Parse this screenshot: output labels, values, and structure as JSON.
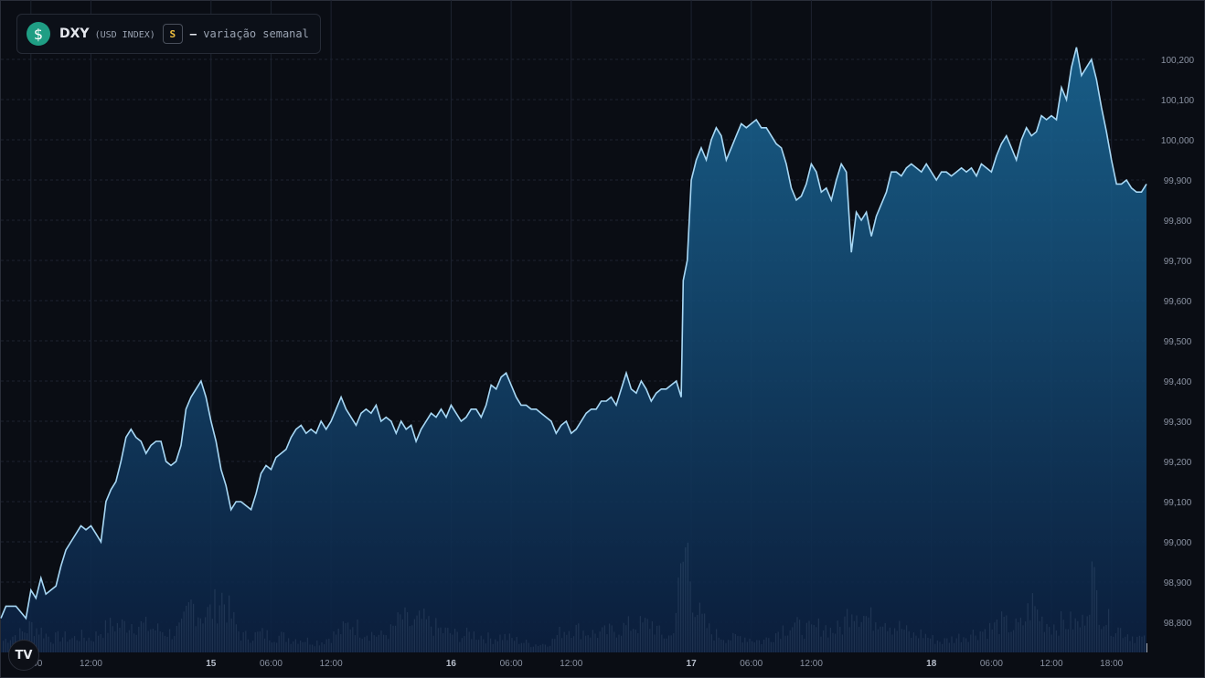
{
  "legend": {
    "icon": "dollar-coin-icon",
    "icon_glyph": "$",
    "symbol": "DXY",
    "symbol_sub": "(USD INDEX)",
    "badge": "S",
    "dash": "–",
    "description": "variação semanal"
  },
  "watermark": {
    "icon": "tradingview-logo-icon",
    "text": "TV"
  },
  "colors": {
    "background": "#0a0d14",
    "line": "#a8d8f5",
    "area_top": "#1a6a9a",
    "area_bottom": "#0b1f3f",
    "volume": "#e8ecf2",
    "grid": "#1d2330",
    "axis_text": "#8b93a3"
  },
  "chart_data": {
    "type": "area",
    "x_unit": "hours since 14 00:00",
    "xlim": [
      3,
      115
    ],
    "ylim": [
      98.76,
      100.34
    ],
    "y_ticks": [
      "100,200",
      "100,100",
      "100,000",
      "99,900",
      "99,800",
      "99,700",
      "99,600",
      "99,500",
      "99,400",
      "99,300",
      "99,200",
      "99,100",
      "99,000",
      "98,900",
      "98,800"
    ],
    "x_ticks": [
      {
        "label": "06:00",
        "bold": false
      },
      {
        "label": "12:00",
        "bold": false
      },
      {
        "label": "15",
        "bold": true
      },
      {
        "label": "06:00",
        "bold": false
      },
      {
        "label": "12:00",
        "bold": false
      },
      {
        "label": "16",
        "bold": true
      },
      {
        "label": "06:00",
        "bold": false
      },
      {
        "label": "12:00",
        "bold": false
      },
      {
        "label": "17",
        "bold": true
      },
      {
        "label": "06:00",
        "bold": false
      },
      {
        "label": "12:00",
        "bold": false
      },
      {
        "label": "18",
        "bold": true
      },
      {
        "label": "06:00",
        "bold": false
      },
      {
        "label": "12:00",
        "bold": false
      },
      {
        "label": "18:00",
        "bold": false
      }
    ],
    "x_tick_hours": [
      6,
      12,
      24,
      30,
      36,
      48,
      54,
      60,
      72,
      78,
      84,
      96,
      102,
      108,
      114
    ],
    "price_series": [
      [
        3.0,
        98.81
      ],
      [
        3.5,
        98.84
      ],
      [
        4.5,
        98.84
      ],
      [
        5.5,
        98.81
      ],
      [
        6.0,
        98.88
      ],
      [
        6.5,
        98.86
      ],
      [
        7.0,
        98.91
      ],
      [
        7.5,
        98.87
      ],
      [
        8.0,
        98.88
      ],
      [
        8.5,
        98.89
      ],
      [
        9.0,
        98.94
      ],
      [
        9.5,
        98.98
      ],
      [
        10.0,
        99.0
      ],
      [
        10.5,
        99.02
      ],
      [
        11.0,
        99.04
      ],
      [
        11.5,
        99.03
      ],
      [
        12.0,
        99.04
      ],
      [
        12.5,
        99.02
      ],
      [
        13.0,
        99.0
      ],
      [
        13.5,
        99.1
      ],
      [
        14.0,
        99.13
      ],
      [
        14.5,
        99.15
      ],
      [
        15.0,
        99.2
      ],
      [
        15.5,
        99.26
      ],
      [
        16.0,
        99.28
      ],
      [
        16.5,
        99.26
      ],
      [
        17.0,
        99.25
      ],
      [
        17.5,
        99.22
      ],
      [
        18.0,
        99.24
      ],
      [
        18.5,
        99.25
      ],
      [
        19.0,
        99.25
      ],
      [
        19.5,
        99.2
      ],
      [
        20.0,
        99.19
      ],
      [
        20.5,
        99.2
      ],
      [
        21.0,
        99.24
      ],
      [
        21.5,
        99.33
      ],
      [
        22.0,
        99.36
      ],
      [
        22.5,
        99.38
      ],
      [
        23.0,
        99.4
      ],
      [
        23.5,
        99.36
      ],
      [
        24.0,
        99.3
      ],
      [
        24.5,
        99.25
      ],
      [
        25.0,
        99.18
      ],
      [
        25.5,
        99.14
      ],
      [
        26.0,
        99.08
      ],
      [
        26.5,
        99.1
      ],
      [
        27.0,
        99.1
      ],
      [
        27.5,
        99.09
      ],
      [
        28.0,
        99.08
      ],
      [
        28.5,
        99.12
      ],
      [
        29.0,
        99.17
      ],
      [
        29.5,
        99.19
      ],
      [
        30.0,
        99.18
      ],
      [
        30.5,
        99.21
      ],
      [
        31.0,
        99.22
      ],
      [
        31.5,
        99.23
      ],
      [
        32.0,
        99.26
      ],
      [
        32.5,
        99.28
      ],
      [
        33.0,
        99.29
      ],
      [
        33.5,
        99.27
      ],
      [
        34.0,
        99.28
      ],
      [
        34.5,
        99.27
      ],
      [
        35.0,
        99.3
      ],
      [
        35.5,
        99.28
      ],
      [
        36.0,
        99.3
      ],
      [
        36.5,
        99.33
      ],
      [
        37.0,
        99.36
      ],
      [
        37.5,
        99.33
      ],
      [
        38.0,
        99.31
      ],
      [
        38.5,
        99.29
      ],
      [
        39.0,
        99.32
      ],
      [
        39.5,
        99.33
      ],
      [
        40.0,
        99.32
      ],
      [
        40.5,
        99.34
      ],
      [
        41.0,
        99.3
      ],
      [
        41.5,
        99.31
      ],
      [
        42.0,
        99.3
      ],
      [
        42.5,
        99.27
      ],
      [
        43.0,
        99.3
      ],
      [
        43.5,
        99.28
      ],
      [
        44.0,
        99.29
      ],
      [
        44.5,
        99.25
      ],
      [
        45.0,
        99.28
      ],
      [
        45.5,
        99.3
      ],
      [
        46.0,
        99.32
      ],
      [
        46.5,
        99.31
      ],
      [
        47.0,
        99.33
      ],
      [
        47.5,
        99.31
      ],
      [
        48.0,
        99.34
      ],
      [
        48.5,
        99.32
      ],
      [
        49.0,
        99.3
      ],
      [
        49.5,
        99.31
      ],
      [
        50.0,
        99.33
      ],
      [
        50.5,
        99.33
      ],
      [
        51.0,
        99.31
      ],
      [
        51.5,
        99.34
      ],
      [
        52.0,
        99.39
      ],
      [
        52.5,
        99.38
      ],
      [
        53.0,
        99.41
      ],
      [
        53.5,
        99.42
      ],
      [
        54.0,
        99.39
      ],
      [
        54.5,
        99.36
      ],
      [
        55.0,
        99.34
      ],
      [
        55.5,
        99.34
      ],
      [
        56.0,
        99.33
      ],
      [
        56.5,
        99.33
      ],
      [
        57.0,
        99.32
      ],
      [
        57.5,
        99.31
      ],
      [
        58.0,
        99.3
      ],
      [
        58.5,
        99.27
      ],
      [
        59.0,
        99.29
      ],
      [
        59.5,
        99.3
      ],
      [
        60.0,
        99.27
      ],
      [
        60.5,
        99.28
      ],
      [
        61.0,
        99.3
      ],
      [
        61.5,
        99.32
      ],
      [
        62.0,
        99.33
      ],
      [
        62.5,
        99.33
      ],
      [
        63.0,
        99.35
      ],
      [
        63.5,
        99.35
      ],
      [
        64.0,
        99.36
      ],
      [
        64.5,
        99.34
      ],
      [
        65.0,
        99.38
      ],
      [
        65.5,
        99.42
      ],
      [
        66.0,
        99.38
      ],
      [
        66.5,
        99.37
      ],
      [
        67.0,
        99.4
      ],
      [
        67.5,
        99.38
      ],
      [
        68.0,
        99.35
      ],
      [
        68.5,
        99.37
      ],
      [
        69.0,
        99.38
      ],
      [
        69.5,
        99.38
      ],
      [
        70.0,
        99.39
      ],
      [
        70.5,
        99.4
      ],
      [
        71.0,
        99.36
      ],
      [
        71.2,
        99.65
      ],
      [
        71.6,
        99.7
      ],
      [
        72.0,
        99.9
      ],
      [
        72.5,
        99.95
      ],
      [
        73.0,
        99.98
      ],
      [
        73.5,
        99.95
      ],
      [
        74.0,
        100.0
      ],
      [
        74.5,
        100.03
      ],
      [
        75.0,
        100.01
      ],
      [
        75.5,
        99.95
      ],
      [
        76.0,
        99.98
      ],
      [
        76.5,
        100.01
      ],
      [
        77.0,
        100.04
      ],
      [
        77.5,
        100.03
      ],
      [
        78.0,
        100.04
      ],
      [
        78.5,
        100.05
      ],
      [
        79.0,
        100.03
      ],
      [
        79.5,
        100.03
      ],
      [
        80.0,
        100.01
      ],
      [
        80.5,
        99.99
      ],
      [
        81.0,
        99.98
      ],
      [
        81.5,
        99.94
      ],
      [
        82.0,
        99.88
      ],
      [
        82.5,
        99.85
      ],
      [
        83.0,
        99.86
      ],
      [
        83.5,
        99.89
      ],
      [
        84.0,
        99.94
      ],
      [
        84.5,
        99.92
      ],
      [
        85.0,
        99.87
      ],
      [
        85.5,
        99.88
      ],
      [
        86.0,
        99.85
      ],
      [
        86.5,
        99.9
      ],
      [
        87.0,
        99.94
      ],
      [
        87.5,
        99.92
      ],
      [
        88.0,
        99.72
      ],
      [
        88.5,
        99.82
      ],
      [
        89.0,
        99.8
      ],
      [
        89.5,
        99.82
      ],
      [
        90.0,
        99.76
      ],
      [
        90.5,
        99.81
      ],
      [
        91.0,
        99.84
      ],
      [
        91.5,
        99.87
      ],
      [
        92.0,
        99.92
      ],
      [
        92.5,
        99.92
      ],
      [
        93.0,
        99.91
      ],
      [
        93.5,
        99.93
      ],
      [
        94.0,
        99.94
      ],
      [
        94.5,
        99.93
      ],
      [
        95.0,
        99.92
      ],
      [
        95.5,
        99.94
      ],
      [
        96.0,
        99.92
      ],
      [
        96.5,
        99.9
      ],
      [
        97.0,
        99.92
      ],
      [
        97.5,
        99.92
      ],
      [
        98.0,
        99.91
      ],
      [
        98.5,
        99.92
      ],
      [
        99.0,
        99.93
      ],
      [
        99.5,
        99.92
      ],
      [
        100.0,
        99.93
      ],
      [
        100.5,
        99.91
      ],
      [
        101.0,
        99.94
      ],
      [
        101.5,
        99.93
      ],
      [
        102.0,
        99.92
      ],
      [
        102.5,
        99.96
      ],
      [
        103.0,
        99.99
      ],
      [
        103.5,
        100.01
      ],
      [
        104.0,
        99.98
      ],
      [
        104.5,
        99.95
      ],
      [
        105.0,
        100.0
      ],
      [
        105.5,
        100.03
      ],
      [
        106.0,
        100.01
      ],
      [
        106.5,
        100.02
      ],
      [
        107.0,
        100.06
      ],
      [
        107.5,
        100.05
      ],
      [
        108.0,
        100.06
      ],
      [
        108.5,
        100.05
      ],
      [
        109.0,
        100.13
      ],
      [
        109.5,
        100.1
      ],
      [
        110.0,
        100.18
      ],
      [
        110.5,
        100.23
      ],
      [
        111.0,
        100.16
      ],
      [
        111.5,
        100.18
      ],
      [
        112.0,
        100.2
      ],
      [
        112.5,
        100.15
      ],
      [
        113.0,
        100.08
      ],
      [
        113.5,
        100.02
      ],
      [
        114.0,
        99.95
      ],
      [
        114.5,
        99.89
      ],
      [
        115.0,
        99.89
      ],
      [
        115.5,
        99.9
      ],
      [
        116.0,
        99.88
      ],
      [
        116.5,
        99.87
      ],
      [
        117.0,
        99.87
      ],
      [
        117.5,
        99.89
      ]
    ],
    "volume_series": [
      [
        3.0,
        0.2
      ],
      [
        4.0,
        0.3
      ],
      [
        5.0,
        0.35
      ],
      [
        6.0,
        0.5
      ],
      [
        7.0,
        0.4
      ],
      [
        8.0,
        0.25
      ],
      [
        9.0,
        0.3
      ],
      [
        10.0,
        0.25
      ],
      [
        11.0,
        0.3
      ],
      [
        12.0,
        0.25
      ],
      [
        13.0,
        0.4
      ],
      [
        14.0,
        0.5
      ],
      [
        15.0,
        0.5
      ],
      [
        16.0,
        0.55
      ],
      [
        17.0,
        0.5
      ],
      [
        18.0,
        0.45
      ],
      [
        19.0,
        0.4
      ],
      [
        20.0,
        0.35
      ],
      [
        21.0,
        0.45
      ],
      [
        22.0,
        0.9
      ],
      [
        23.0,
        0.7
      ],
      [
        24.0,
        0.75
      ],
      [
        25.0,
        1.05
      ],
      [
        26.0,
        0.65
      ],
      [
        27.0,
        0.3
      ],
      [
        28.0,
        0.3
      ],
      [
        29.0,
        0.35
      ],
      [
        30.0,
        0.3
      ],
      [
        31.0,
        0.3
      ],
      [
        32.0,
        0.25
      ],
      [
        33.0,
        0.25
      ],
      [
        34.0,
        0.2
      ],
      [
        35.0,
        0.2
      ],
      [
        36.0,
        0.3
      ],
      [
        37.0,
        0.4
      ],
      [
        38.0,
        0.55
      ],
      [
        39.0,
        0.4
      ],
      [
        40.0,
        0.35
      ],
      [
        41.0,
        0.3
      ],
      [
        42.0,
        0.4
      ],
      [
        43.0,
        0.65
      ],
      [
        44.0,
        0.5
      ],
      [
        45.0,
        0.6
      ],
      [
        46.0,
        0.5
      ],
      [
        47.0,
        0.4
      ],
      [
        48.0,
        0.35
      ],
      [
        49.0,
        0.3
      ],
      [
        50.0,
        0.35
      ],
      [
        51.0,
        0.3
      ],
      [
        52.0,
        0.25
      ],
      [
        53.0,
        0.3
      ],
      [
        54.0,
        0.25
      ],
      [
        55.0,
        0.2
      ],
      [
        56.0,
        0.15
      ],
      [
        57.0,
        0.15
      ],
      [
        58.0,
        0.2
      ],
      [
        59.0,
        0.4
      ],
      [
        60.0,
        0.45
      ],
      [
        61.0,
        0.4
      ],
      [
        62.0,
        0.35
      ],
      [
        63.0,
        0.35
      ],
      [
        64.0,
        0.4
      ],
      [
        65.0,
        0.45
      ],
      [
        66.0,
        0.5
      ],
      [
        67.0,
        0.5
      ],
      [
        68.0,
        0.55
      ],
      [
        69.0,
        0.3
      ],
      [
        70.0,
        0.3
      ],
      [
        71.0,
        1.5
      ],
      [
        71.5,
        2.05
      ],
      [
        72.0,
        1.2
      ],
      [
        72.5,
        0.8
      ],
      [
        73.0,
        0.6
      ],
      [
        74.0,
        0.35
      ],
      [
        75.0,
        0.3
      ],
      [
        76.0,
        0.25
      ],
      [
        77.0,
        0.3
      ],
      [
        78.0,
        0.25
      ],
      [
        79.0,
        0.2
      ],
      [
        80.0,
        0.3
      ],
      [
        81.0,
        0.45
      ],
      [
        82.0,
        0.5
      ],
      [
        83.0,
        0.45
      ],
      [
        84.0,
        0.4
      ],
      [
        85.0,
        0.5
      ],
      [
        86.0,
        0.4
      ],
      [
        87.0,
        0.45
      ],
      [
        88.0,
        0.9
      ],
      [
        89.0,
        0.7
      ],
      [
        90.0,
        0.6
      ],
      [
        91.0,
        0.7
      ],
      [
        92.0,
        0.5
      ],
      [
        93.0,
        0.45
      ],
      [
        94.0,
        0.3
      ],
      [
        95.0,
        0.35
      ],
      [
        96.0,
        0.25
      ],
      [
        97.0,
        0.2
      ],
      [
        98.0,
        0.25
      ],
      [
        99.0,
        0.3
      ],
      [
        100.0,
        0.35
      ],
      [
        101.0,
        0.4
      ],
      [
        102.0,
        0.45
      ],
      [
        103.0,
        0.55
      ],
      [
        104.0,
        0.45
      ],
      [
        105.0,
        0.5
      ],
      [
        106.0,
        0.9
      ],
      [
        107.0,
        0.6
      ],
      [
        108.0,
        0.5
      ],
      [
        109.0,
        0.55
      ],
      [
        110.0,
        0.55
      ],
      [
        111.0,
        0.5
      ],
      [
        112.0,
        1.4
      ],
      [
        112.5,
        1.0
      ],
      [
        113.0,
        0.7
      ],
      [
        114.0,
        0.5
      ],
      [
        115.0,
        0.4
      ],
      [
        116.0,
        0.3
      ],
      [
        117.0,
        0.25
      ],
      [
        117.5,
        0.2
      ]
    ]
  }
}
